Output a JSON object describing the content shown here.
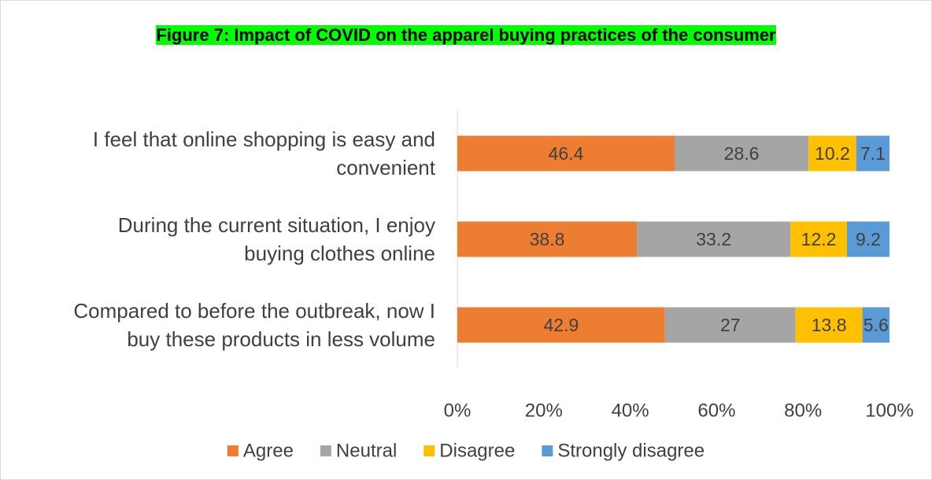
{
  "chart_data": {
    "type": "bar",
    "orientation": "horizontal",
    "stacking": "percent",
    "title": "Figure 7: Impact of COVID on the apparel buying practices of the consumer",
    "title_highlight": "#00ff00",
    "categories": [
      "I feel that online shopping is easy and convenient",
      "During the current situation, I enjoy buying clothes online",
      "Compared to before the outbreak, now I buy these products in less volume"
    ],
    "series": [
      {
        "name": "Agree",
        "color": "#ed7d31",
        "values": [
          46.4,
          38.8,
          42.9
        ]
      },
      {
        "name": "Neutral",
        "color": "#a5a5a5",
        "values": [
          28.6,
          33.2,
          27
        ]
      },
      {
        "name": "Disagree",
        "color": "#ffc000",
        "values": [
          10.2,
          12.2,
          13.8
        ]
      },
      {
        "name": "Strongly disagree",
        "color": "#5b9bd5",
        "values": [
          7.1,
          9.2,
          5.6
        ]
      }
    ],
    "xlim": [
      0,
      100
    ],
    "xticks": [
      {
        "value": 0,
        "label": "0%"
      },
      {
        "value": 20,
        "label": "20%"
      },
      {
        "value": 40,
        "label": "40%"
      },
      {
        "value": 60,
        "label": "60%"
      },
      {
        "value": 80,
        "label": "80%"
      },
      {
        "value": 100,
        "label": "100%"
      }
    ],
    "grid": false,
    "legend": "bottom"
  }
}
